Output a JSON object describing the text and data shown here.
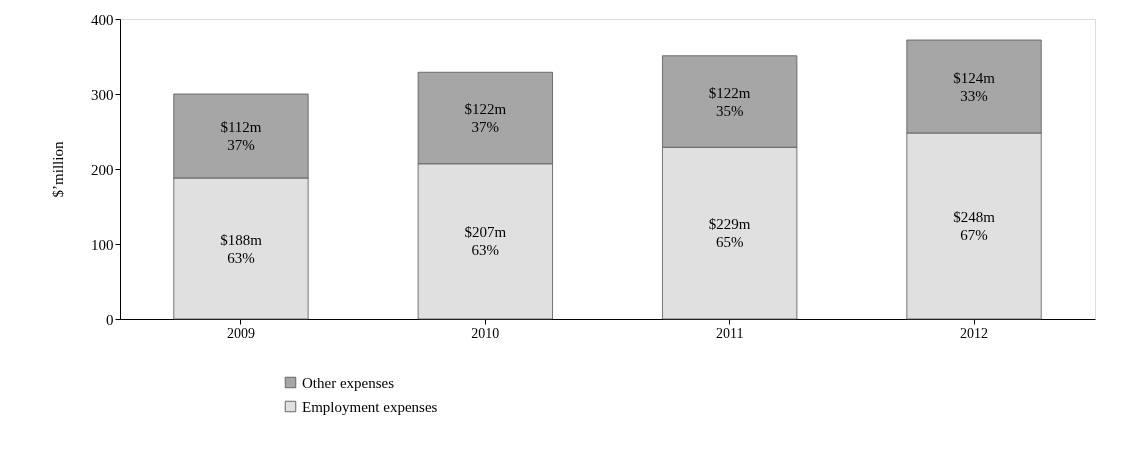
{
  "chart_data": {
    "type": "bar",
    "stacked": true,
    "ylabel": "$’million",
    "categories": [
      "2009",
      "2010",
      "2011",
      "2012"
    ],
    "ylim": [
      0,
      400
    ],
    "yticks": [
      0,
      100,
      200,
      300,
      400
    ],
    "grid": false,
    "legend": "bottom",
    "series": [
      {
        "name": "Employment expenses",
        "color": "#e0e0e0",
        "values": [
          188,
          207,
          229,
          248
        ],
        "value_labels": [
          "$188m",
          "$207m",
          "$229m",
          "$248m"
        ]
      },
      {
        "name": "Other expenses",
        "color": "#a6a6a6",
        "values": [
          112,
          122,
          122,
          124
        ],
        "value_labels": [
          "$112m",
          "$122m",
          "$122m",
          "$124m"
        ]
      }
    ],
    "annotations": [
      "63%",
      "63%",
      "65%",
      "67%",
      "37%",
      "37%",
      "35%",
      "33%"
    ]
  }
}
